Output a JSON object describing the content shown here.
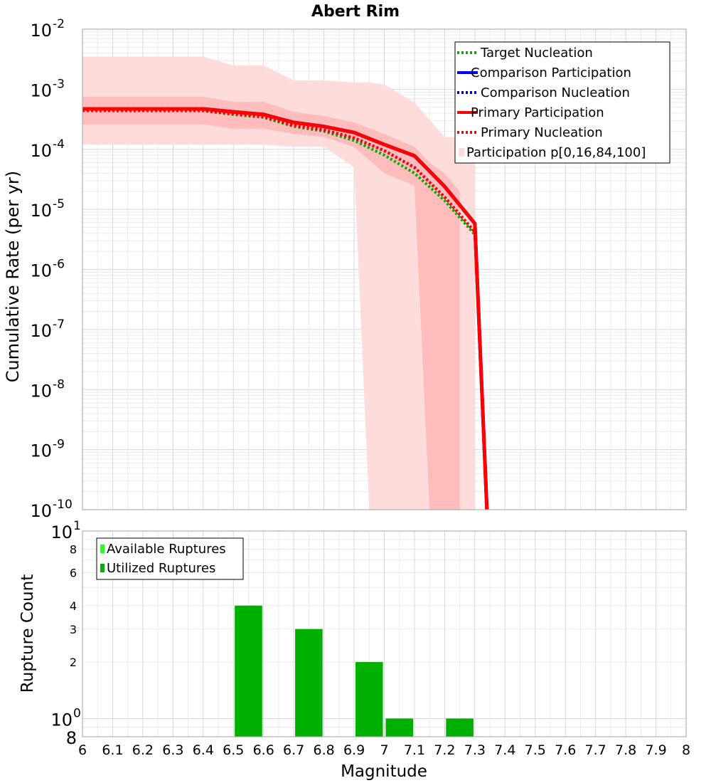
{
  "chart_data": [
    {
      "type": "line",
      "title": "Abert Rim",
      "xlabel": "",
      "ylabel": "Cumulative Rate (per yr)",
      "xlim": [
        6,
        8
      ],
      "ylim": [
        1e-10,
        0.01
      ],
      "yscale": "log",
      "grid": true,
      "legend_position": "top-right",
      "y_ticks": [
        {
          "base": "10",
          "exp": "-2",
          "value": 0.01
        },
        {
          "base": "10",
          "exp": "-3",
          "value": 0.001
        },
        {
          "base": "10",
          "exp": "-4",
          "value": 0.0001
        },
        {
          "base": "10",
          "exp": "-5",
          "value": 1e-05
        },
        {
          "base": "10",
          "exp": "-6",
          "value": 1e-06
        },
        {
          "base": "10",
          "exp": "-7",
          "value": 1e-07
        },
        {
          "base": "10",
          "exp": "-8",
          "value": 1e-08
        },
        {
          "base": "10",
          "exp": "-9",
          "value": 1e-09
        },
        {
          "base": "10",
          "exp": "-10",
          "value": 1e-10
        }
      ],
      "bands": [
        {
          "name": "Participation p[0,16,84,100]",
          "kind": "outer",
          "color": "#ffdcdc",
          "points": [
            {
              "x": 6.0,
              "lo": 0.00012,
              "hi": 0.0035
            },
            {
              "x": 6.4,
              "lo": 0.00012,
              "hi": 0.0035
            },
            {
              "x": 6.5,
              "lo": 0.00012,
              "hi": 0.0025
            },
            {
              "x": 6.6,
              "lo": 0.00012,
              "hi": 0.0025
            },
            {
              "x": 6.7,
              "lo": 0.00011,
              "hi": 0.0014
            },
            {
              "x": 6.8,
              "lo": 0.00011,
              "hi": 0.0014
            },
            {
              "x": 6.9,
              "lo": 5e-05,
              "hi": 0.0013
            },
            {
              "x": 6.95,
              "lo": 1e-10,
              "hi": 0.0013
            },
            {
              "x": 7.0,
              "lo": 1e-10,
              "hi": 0.0012
            },
            {
              "x": 7.1,
              "lo": 1e-10,
              "hi": 0.0006
            },
            {
              "x": 7.2,
              "lo": 1e-10,
              "hi": 0.00016
            },
            {
              "x": 7.3,
              "lo": 1e-10,
              "hi": 0.00016
            }
          ]
        },
        {
          "name": "Participation p16-p84",
          "kind": "inner",
          "color": "#ffbcbc",
          "points": [
            {
              "x": 6.0,
              "lo": 0.00026,
              "hi": 0.00075
            },
            {
              "x": 6.4,
              "lo": 0.00026,
              "hi": 0.00075
            },
            {
              "x": 6.5,
              "lo": 0.00022,
              "hi": 0.00062
            },
            {
              "x": 6.6,
              "lo": 0.00022,
              "hi": 0.00062
            },
            {
              "x": 6.7,
              "lo": 0.00018,
              "hi": 0.00042
            },
            {
              "x": 6.8,
              "lo": 0.00016,
              "hi": 0.00036
            },
            {
              "x": 6.9,
              "lo": 0.00011,
              "hi": 0.00028
            },
            {
              "x": 7.0,
              "lo": 4e-05,
              "hi": 0.00018
            },
            {
              "x": 7.1,
              "lo": 2.5e-05,
              "hi": 0.00011
            },
            {
              "x": 7.15,
              "lo": 1e-10,
              "hi": 6e-05
            },
            {
              "x": 7.2,
              "lo": 1e-10,
              "hi": 4e-05
            },
            {
              "x": 7.25,
              "lo": 1e-10,
              "hi": 2e-05
            }
          ]
        }
      ],
      "series": [
        {
          "name": "Target Nucleation",
          "color": "#00b000",
          "dash": "dot",
          "x": [
            6.0,
            6.4,
            6.5,
            6.6,
            6.7,
            6.8,
            6.9,
            7.0,
            7.1,
            7.2,
            7.3
          ],
          "y": [
            0.00044,
            0.00044,
            0.00038,
            0.00034,
            0.00024,
            0.0002,
            0.00014,
            8e-05,
            4e-05,
            1.4e-05,
            3.8e-06
          ]
        },
        {
          "name": "Comparison Participation",
          "color": "#0000ff",
          "dash": "solid",
          "x": [
            6.0,
            6.4,
            6.5,
            6.6,
            6.7,
            6.8,
            6.9,
            7.0,
            7.1,
            7.2,
            7.3,
            7.34
          ],
          "y": [
            0.00047,
            0.00047,
            0.00042,
            0.00038,
            0.00028,
            0.00024,
            0.00019,
            0.00012,
            7.8e-05,
            2.4e-05,
            5.8e-06,
            1e-10
          ]
        },
        {
          "name": "Comparison Nucleation",
          "color": "#0000c8",
          "dash": "dot",
          "x": [
            6.0,
            6.4,
            6.5,
            6.6,
            6.7,
            6.8,
            6.9,
            7.0,
            7.1,
            7.2,
            7.3
          ],
          "y": [
            0.00044,
            0.00044,
            0.00039,
            0.00035,
            0.00025,
            0.00021,
            0.000155,
            9.5e-05,
            5e-05,
            1.6e-05,
            4.2e-06
          ]
        },
        {
          "name": "Primary Participation",
          "color": "#ff0000",
          "dash": "solid",
          "x": [
            6.0,
            6.4,
            6.5,
            6.6,
            6.7,
            6.8,
            6.9,
            7.0,
            7.1,
            7.2,
            7.3,
            7.34
          ],
          "y": [
            0.00047,
            0.00047,
            0.00042,
            0.00038,
            0.00028,
            0.00024,
            0.00019,
            0.00012,
            7.8e-05,
            2.4e-05,
            5.8e-06,
            1e-10
          ]
        },
        {
          "name": "Primary Nucleation",
          "color": "#ff0000",
          "dash": "dot",
          "x": [
            6.0,
            6.4,
            6.5,
            6.6,
            6.7,
            6.8,
            6.9,
            7.0,
            7.1,
            7.2,
            7.3
          ],
          "y": [
            0.00044,
            0.00044,
            0.00039,
            0.00035,
            0.00025,
            0.00021,
            0.000155,
            9.5e-05,
            5e-05,
            1.6e-05,
            4.2e-06
          ]
        }
      ],
      "legend": [
        {
          "label": "Target Nucleation",
          "color": "#00b000",
          "style": "dot"
        },
        {
          "label": "Comparison Participation",
          "color": "#0000ff",
          "style": "solid"
        },
        {
          "label": "Comparison Nucleation",
          "color": "#0000c8",
          "style": "dot"
        },
        {
          "label": "Primary Participation",
          "color": "#ff0000",
          "style": "solid"
        },
        {
          "label": "Primary Nucleation",
          "color": "#ff0000",
          "style": "dot"
        },
        {
          "label": "Participation p[0,16,84,100]",
          "color": "#ffdcdc",
          "style": "box"
        }
      ]
    },
    {
      "type": "bar",
      "title": "",
      "xlabel": "Magnitude",
      "ylabel": "Rupture Count",
      "xlim": [
        6,
        8
      ],
      "ylim": [
        0.8,
        10
      ],
      "yscale": "log",
      "grid": true,
      "legend_position": "top-left",
      "x_ticks": [
        "6",
        "6.1",
        "6.2",
        "6.3",
        "6.4",
        "6.5",
        "6.6",
        "6.7",
        "6.8",
        "6.9",
        "7",
        "7.1",
        "7.2",
        "7.3",
        "7.4",
        "7.5",
        "7.6",
        "7.7",
        "7.8",
        "7.9",
        "8"
      ],
      "y_ticks": [
        {
          "label": "10",
          "exp": "1",
          "value": 10
        },
        {
          "label": "8",
          "exp": "",
          "value": 8
        },
        {
          "label": "6",
          "exp": "",
          "value": 6
        },
        {
          "label": "4",
          "exp": "",
          "value": 4
        },
        {
          "label": "3",
          "exp": "",
          "value": 3
        },
        {
          "label": "2",
          "exp": "",
          "value": 2
        },
        {
          "label": "10",
          "exp": "0",
          "value": 1
        },
        {
          "label": "8",
          "exp": "",
          "value": 0.8
        }
      ],
      "series": [
        {
          "name": "Available Ruptures",
          "color": "#22ff22",
          "bars": [
            {
              "x0": 6.5,
              "x1": 6.6,
              "value": 4
            },
            {
              "x0": 6.7,
              "x1": 6.8,
              "value": 3
            },
            {
              "x0": 6.9,
              "x1": 7.0,
              "value": 2
            },
            {
              "x0": 7.0,
              "x1": 7.1,
              "value": 1
            },
            {
              "x0": 7.2,
              "x1": 7.3,
              "value": 1
            }
          ]
        },
        {
          "name": "Utilized Ruptures",
          "color": "#00b000",
          "bars": [
            {
              "x0": 6.5,
              "x1": 6.6,
              "value": 4
            },
            {
              "x0": 6.7,
              "x1": 6.8,
              "value": 3
            },
            {
              "x0": 6.9,
              "x1": 7.0,
              "value": 2
            },
            {
              "x0": 7.0,
              "x1": 7.1,
              "value": 1
            },
            {
              "x0": 7.2,
              "x1": 7.3,
              "value": 1
            }
          ]
        }
      ],
      "legend": [
        {
          "label": "Available Ruptures",
          "color": "#22ff22"
        },
        {
          "label": "Utilized Ruptures",
          "color": "#00b000"
        }
      ]
    }
  ]
}
